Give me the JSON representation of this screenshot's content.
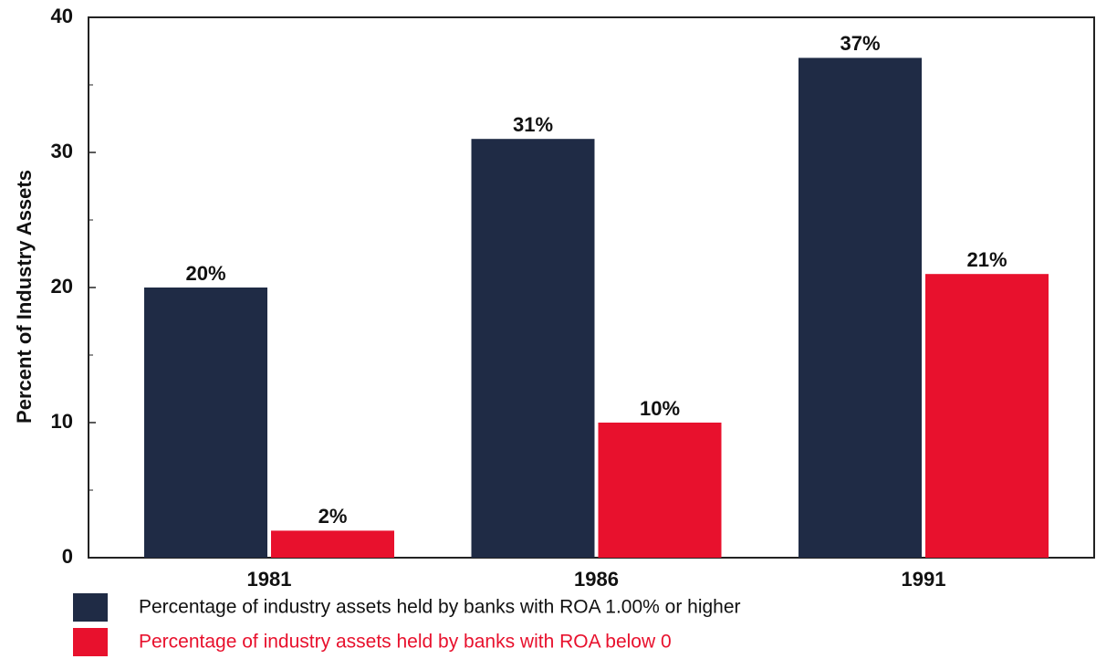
{
  "chart_data": {
    "type": "bar",
    "y_label": "Percent of Industry Assets",
    "categories": [
      "1981",
      "1986",
      "1991"
    ],
    "series": [
      {
        "name": "Percentage of industry assets held by banks with ROA 1.00% or higher",
        "color": "#1f2b45",
        "values": [
          20,
          31,
          37
        ],
        "value_labels": [
          "20%",
          "31%",
          "37%"
        ]
      },
      {
        "name": "Percentage of industry assets held by banks with ROA below 0",
        "color": "#e8112d",
        "values": [
          2,
          10,
          21
        ],
        "value_labels": [
          "2%",
          "10%",
          "21%"
        ]
      }
    ],
    "ylim": [
      0,
      40
    ],
    "yticks": [
      0,
      10,
      20,
      30,
      40
    ],
    "minor_yticks": [
      5,
      15,
      25,
      35
    ],
    "grid": false
  }
}
